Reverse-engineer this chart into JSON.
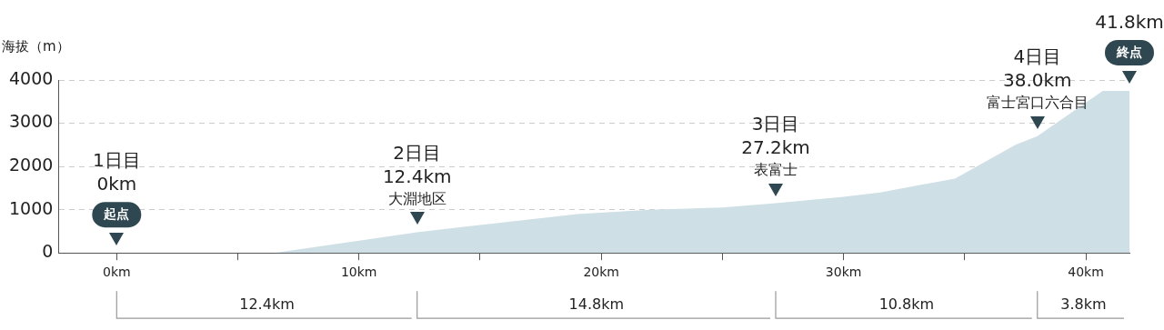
{
  "chart_data": {
    "type": "area",
    "ylabel": "海拔（m）",
    "x": [
      0,
      6.5,
      12.4,
      19,
      22,
      25,
      27.2,
      30,
      31.5,
      34.6,
      37.1,
      38.0,
      40.7,
      41.8
    ],
    "series": [
      {
        "color": "#cfdfe6",
        "values": [
          0,
          0,
          480,
          900,
          1000,
          1050,
          1150,
          1300,
          1400,
          1720,
          2500,
          2700,
          3750,
          3750
        ]
      }
    ],
    "xlim": [
      -2.4,
      41.8
    ],
    "xticks": [
      {
        "value": 0,
        "label": "0km"
      },
      {
        "value": 5,
        "label": null
      },
      {
        "value": 10,
        "label": "10km"
      },
      {
        "value": 15,
        "label": null
      },
      {
        "value": 20,
        "label": "20km"
      },
      {
        "value": 25,
        "label": null
      },
      {
        "value": 30,
        "label": "30km"
      },
      {
        "value": 35,
        "label": null
      },
      {
        "value": 40,
        "label": "40km"
      }
    ],
    "ylim": [
      0,
      4000
    ],
    "yticks": [
      0,
      1000,
      2000,
      3000,
      4000
    ],
    "grid": "y",
    "legend": false,
    "annotations": [
      {
        "text": "1日目\n0km\n起点",
        "x": 0,
        "y": 0
      },
      {
        "text": "2日目\n12.4km\n大淵地区",
        "x": 12.4,
        "y": 480
      },
      {
        "text": "3日目\n27.2km\n表富士",
        "x": 27.2,
        "y": 1150
      },
      {
        "text": "4日目\n38.0km\n富士宮口六合目",
        "x": 38.0,
        "y": 2700
      },
      {
        "text": "41.8km\n終点",
        "x": 41.8,
        "y": 3750
      },
      "12.4km",
      "14.8km",
      "10.8km",
      "3.8km"
    ]
  }
}
